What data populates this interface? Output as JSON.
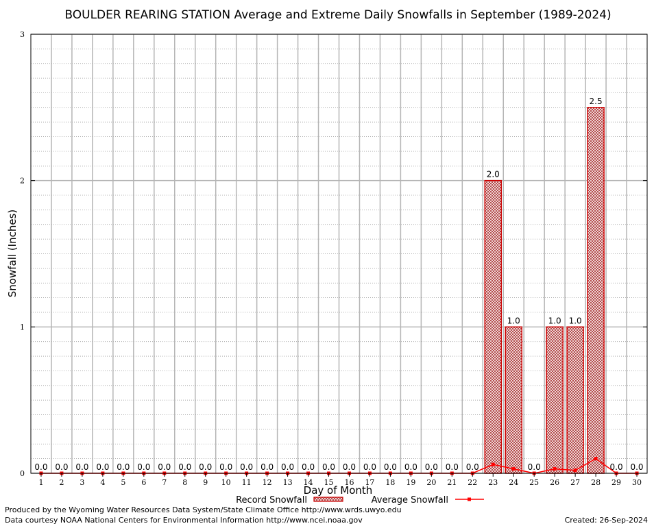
{
  "chart_data": {
    "type": "bar",
    "title": "BOULDER REARING STATION Average and Extreme Daily Snowfalls in September (1989-2024)",
    "xlabel": "Day of Month",
    "ylabel": "Snowfall (Inches)",
    "ylim": [
      0,
      3
    ],
    "yticks": [
      "0",
      "1",
      "2",
      "3"
    ],
    "categories": [
      "1",
      "2",
      "3",
      "4",
      "5",
      "6",
      "7",
      "8",
      "9",
      "10",
      "11",
      "12",
      "13",
      "14",
      "15",
      "16",
      "17",
      "18",
      "19",
      "20",
      "21",
      "22",
      "23",
      "24",
      "25",
      "26",
      "27",
      "28",
      "29",
      "30"
    ],
    "series": [
      {
        "name": "Record Snowfall",
        "kind": "bar",
        "color": "#cc0000",
        "values": [
          0,
          0,
          0,
          0,
          0,
          0,
          0,
          0,
          0,
          0,
          0,
          0,
          0,
          0,
          0,
          0,
          0,
          0,
          0,
          0,
          0,
          0,
          2.0,
          1.0,
          0,
          1.0,
          1.0,
          2.5,
          0,
          0
        ],
        "labels": [
          "0.0",
          "0.0",
          "0.0",
          "0.0",
          "0.0",
          "0.0",
          "0.0",
          "0.0",
          "0.0",
          "0.0",
          "0.0",
          "0.0",
          "0.0",
          "0.0",
          "0.0",
          "0.0",
          "0.0",
          "0.0",
          "0.0",
          "0.0",
          "0.0",
          "0.0",
          "2.0",
          "1.0",
          "0.0",
          "1.0",
          "1.0",
          "2.5",
          "0.0",
          "0.0"
        ]
      },
      {
        "name": "Average Snowfall",
        "kind": "line",
        "color": "#ff0000",
        "values": [
          0,
          0,
          0,
          0,
          0,
          0,
          0,
          0,
          0,
          0,
          0,
          0,
          0,
          0,
          0,
          0,
          0,
          0,
          0,
          0,
          0,
          0,
          0.06,
          0.03,
          0,
          0.03,
          0.02,
          0.1,
          0,
          0
        ]
      }
    ],
    "grid": true,
    "legend": "bottom"
  },
  "footer": {
    "produced_by": "Produced by the Wyoming Water Resources Data System/State Climate Office http://www.wrds.uwyo.edu",
    "courtesy": "Data courtesy NOAA National Centers for Environmental Information http://www.ncei.noaa.gov",
    "created": "Created:  26-Sep-2024"
  }
}
